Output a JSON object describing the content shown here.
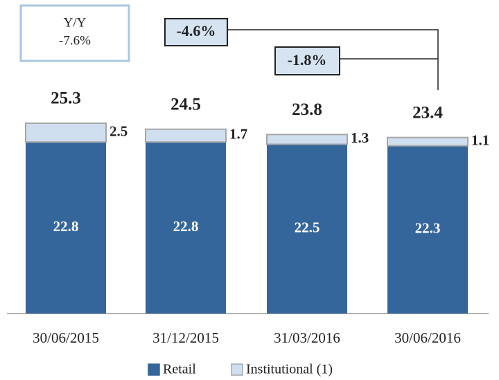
{
  "chart_data": {
    "type": "stacked_bar",
    "categories": [
      "30/06/2015",
      "31/12/2015",
      "31/03/2016",
      "30/06/2016"
    ],
    "series": [
      {
        "name": "Retail",
        "color": "#35669b",
        "values": [
          22.8,
          22.8,
          22.5,
          22.3
        ]
      },
      {
        "name": "Institutional (1)",
        "color": "#cfdff0",
        "values": [
          2.5,
          1.7,
          1.3,
          1.1
        ]
      }
    ],
    "totals": [
      25.3,
      24.5,
      23.8,
      23.4
    ],
    "annotations": {
      "yy_title": "Y/Y",
      "yy_value": "-7.6%",
      "change_long": "-4.6%",
      "change_short": "-1.8%"
    }
  }
}
